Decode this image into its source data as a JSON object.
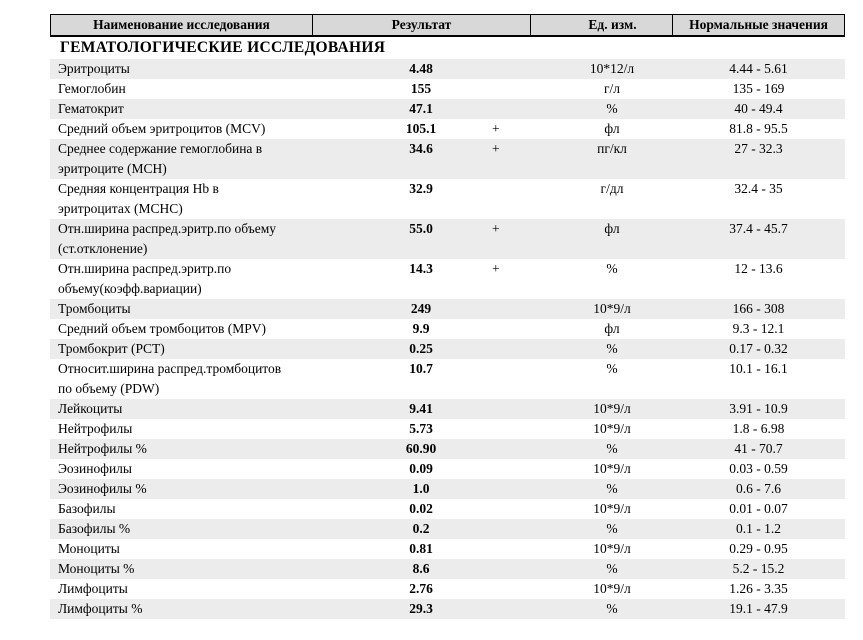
{
  "colors": {
    "header_bg": "#d8d8d8",
    "stripe_bg": "#ececec",
    "border": "#000000",
    "text": "#000000"
  },
  "table": {
    "columns": {
      "name": "Наименование исследования",
      "result": "Результат",
      "units": "Ед. изм.",
      "normal": "Нормальные значения"
    },
    "section": "ГЕМАТОЛОГИЧЕСКИЕ ИССЛЕДОВАНИЯ",
    "rows": [
      {
        "name": "Эритроциты",
        "result": "4.48",
        "flag": "",
        "units": "10*12/л",
        "normal": "4.44 - 5.61"
      },
      {
        "name": "Гемоглобин",
        "result": "155",
        "flag": "",
        "units": "г/л",
        "normal": "135 - 169"
      },
      {
        "name": "Гематокрит",
        "result": "47.1",
        "flag": "",
        "units": "%",
        "normal": "40 - 49.4"
      },
      {
        "name": "Средний объем эритроцитов (MCV)",
        "result": "105.1",
        "flag": "+",
        "units": "фл",
        "normal": "81.8 - 95.5"
      },
      {
        "name": "Среднее содержание гемоглобина в\nэритроците (MCH)",
        "result": "34.6",
        "flag": "+",
        "units": "пг/кл",
        "normal": "27 - 32.3"
      },
      {
        "name": "Средняя концентрация Hb в\nэритроцитах (MCHC)",
        "result": "32.9",
        "flag": "",
        "units": "г/дл",
        "normal": "32.4 - 35"
      },
      {
        "name": "Отн.ширина распред.эритр.по объему\n(ст.отклонение)",
        "result": "55.0",
        "flag": "+",
        "units": "фл",
        "normal": "37.4 - 45.7"
      },
      {
        "name": "Отн.ширина распред.эритр.по\nобъему(коэфф.вариации)",
        "result": "14.3",
        "flag": "+",
        "units": "%",
        "normal": "12 - 13.6"
      },
      {
        "name": "Тромбоциты",
        "result": "249",
        "flag": "",
        "units": "10*9/л",
        "normal": "166 - 308"
      },
      {
        "name": "Средний объем тромбоцитов (MPV)",
        "result": "9.9",
        "flag": "",
        "units": "фл",
        "normal": "9.3 - 12.1"
      },
      {
        "name": "Тромбокрит (PCT)",
        "result": "0.25",
        "flag": "",
        "units": "%",
        "normal": "0.17 - 0.32"
      },
      {
        "name": "Относит.ширина распред.тромбоцитов\nпо объему (PDW)",
        "result": "10.7",
        "flag": "",
        "units": "%",
        "normal": "10.1 - 16.1"
      },
      {
        "name": "Лейкоциты",
        "result": "9.41",
        "flag": "",
        "units": "10*9/л",
        "normal": "3.91 - 10.9"
      },
      {
        "name": "Нейтрофилы",
        "result": "5.73",
        "flag": "",
        "units": "10*9/л",
        "normal": "1.8 - 6.98"
      },
      {
        "name": "Нейтрофилы %",
        "result": "60.90",
        "flag": "",
        "units": "%",
        "normal": "41 - 70.7"
      },
      {
        "name": "Эозинофилы",
        "result": "0.09",
        "flag": "",
        "units": "10*9/л",
        "normal": "0.03 - 0.59"
      },
      {
        "name": "Эозинофилы %",
        "result": "1.0",
        "flag": "",
        "units": "%",
        "normal": "0.6 - 7.6"
      },
      {
        "name": "Базофилы",
        "result": "0.02",
        "flag": "",
        "units": "10*9/л",
        "normal": "0.01 - 0.07"
      },
      {
        "name": "Базофилы %",
        "result": "0.2",
        "flag": "",
        "units": "%",
        "normal": "0.1 - 1.2"
      },
      {
        "name": "Моноциты",
        "result": "0.81",
        "flag": "",
        "units": "10*9/л",
        "normal": "0.29 - 0.95"
      },
      {
        "name": "Моноциты %",
        "result": "8.6",
        "flag": "",
        "units": "%",
        "normal": "5.2 - 15.2"
      },
      {
        "name": "Лимфоциты",
        "result": "2.76",
        "flag": "",
        "units": "10*9/л",
        "normal": "1.26 - 3.35"
      },
      {
        "name": "Лимфоциты %",
        "result": "29.3",
        "flag": "",
        "units": "%",
        "normal": "19.1 - 47.9"
      }
    ]
  }
}
